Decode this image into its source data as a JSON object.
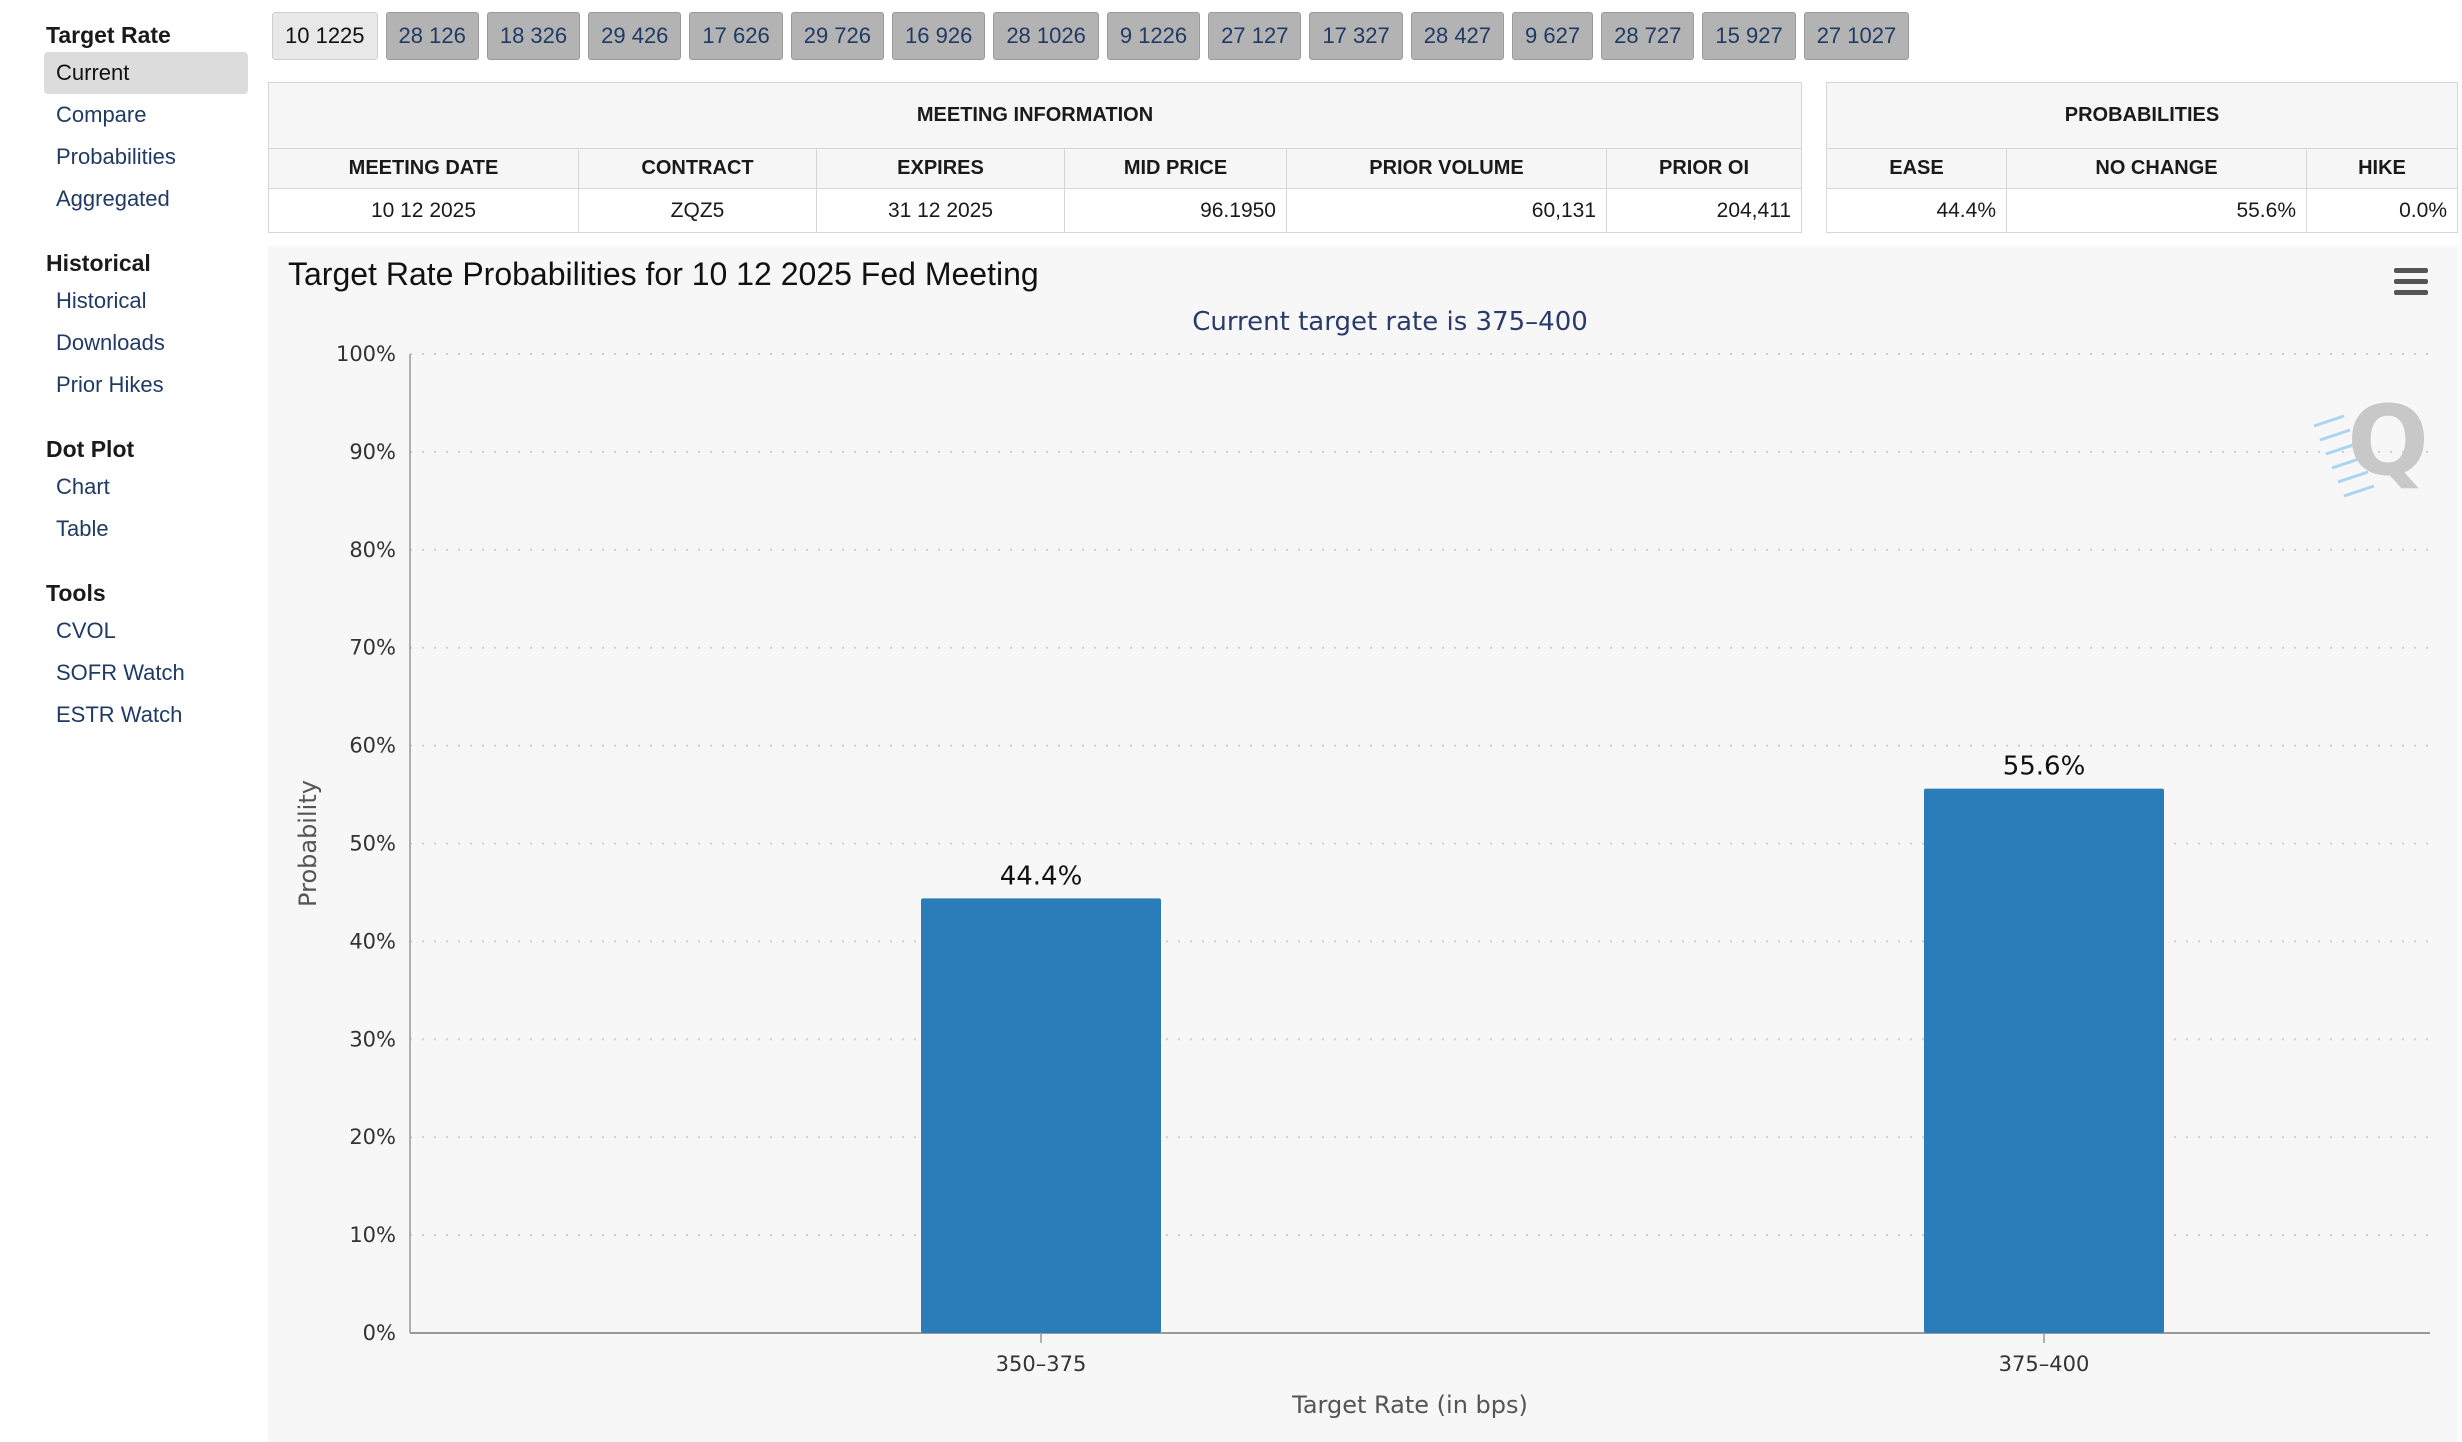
{
  "sidebar": {
    "groups": [
      {
        "heading": "Target Rate",
        "items": [
          "Current",
          "Compare",
          "Probabilities",
          "Aggregated"
        ]
      },
      {
        "heading": "Historical",
        "items": [
          "Historical",
          "Downloads",
          "Prior Hikes"
        ]
      },
      {
        "heading": "Dot Plot",
        "items": [
          "Chart",
          "Table"
        ]
      },
      {
        "heading": "Tools",
        "items": [
          "CVOL",
          "SOFR Watch",
          "ESTR Watch"
        ]
      }
    ],
    "active_item": "Current"
  },
  "tabs": [
    "10 1225",
    "28 126",
    "18 326",
    "29 426",
    "17 626",
    "29 726",
    "16 926",
    "28 1026",
    "9 1226",
    "27 127",
    "17 327",
    "28 427",
    "9 627",
    "28 727",
    "15 927",
    "27 1027"
  ],
  "active_tab": "10 1225",
  "meeting_info": {
    "title": "MEETING INFORMATION",
    "headers": [
      "MEETING DATE",
      "CONTRACT",
      "EXPIRES",
      "MID PRICE",
      "PRIOR VOLUME",
      "PRIOR OI"
    ],
    "row": [
      "10 12 2025",
      "ZQZ5",
      "31 12 2025",
      "96.1950",
      "60,131",
      "204,411"
    ]
  },
  "probabilities": {
    "title": "PROBABILITIES",
    "headers": [
      "EASE",
      "NO CHANGE",
      "HIKE"
    ],
    "row": [
      "44.4%",
      "55.6%",
      "0.0%"
    ]
  },
  "chart_title": "Target Rate Probabilities for 10 12 2025 Fed Meeting",
  "chart_data": {
    "type": "bar",
    "subtitle": "Current target rate is 375–400",
    "categories": [
      "350–375",
      "375–400"
    ],
    "values": [
      44.4,
      55.6
    ],
    "data_labels": [
      "44.4%",
      "55.6%"
    ],
    "xlabel": "Target Rate (in bps)",
    "ylabel": "Probability",
    "ylim": [
      0,
      100
    ],
    "yticks": [
      "0%",
      "10%",
      "20%",
      "30%",
      "40%",
      "50%",
      "60%",
      "70%",
      "80%",
      "90%",
      "100%"
    ],
    "grid": true,
    "bar_color": "#2a7db8"
  },
  "watermark": "Q"
}
